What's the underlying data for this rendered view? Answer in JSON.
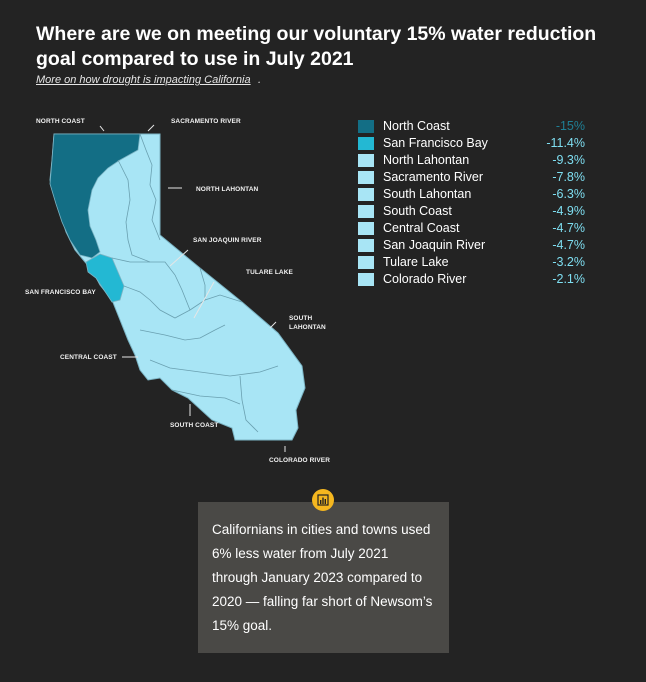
{
  "header": {
    "title": "Where are we on meeting our voluntary 15% water reduction goal compared to use in July 2021",
    "link_text": "More on how drought is impacting California",
    "link_suffix": "."
  },
  "map": {
    "labels": {
      "north_coast": "NORTH COAST",
      "sacramento_river": "SACRAMENTO RIVER",
      "north_lahontan": "NORTH LAHONTAN",
      "san_joaquin_river": "SAN JOAQUIN RIVER",
      "tulare_lake": "TULARE LAKE",
      "san_francisco_bay": "SAN FRANCISCO BAY",
      "south_lahontan_1": "SOUTH",
      "south_lahontan_2": "LAHONTAN",
      "central_coast": "CENTRAL COAST",
      "south_coast": "SOUTH COAST",
      "colorado_river": "COLORADO RIVER"
    },
    "colors": {
      "north_coast": "#136e85",
      "san_francisco_bay": "#23b8d3",
      "others": "#a8e5f5",
      "border": "#7bb4c4"
    }
  },
  "legend": {
    "items": [
      {
        "name": "North Coast",
        "value": "-15%",
        "color": "#136e85"
      },
      {
        "name": "San Francisco Bay",
        "value": "-11.4%",
        "color": "#23b8d3"
      },
      {
        "name": "North Lahontan",
        "value": "-9.3%",
        "color": "#a8e5f5"
      },
      {
        "name": "Sacramento River",
        "value": "-7.8%",
        "color": "#a8e5f5"
      },
      {
        "name": "South Lahontan",
        "value": "-6.3%",
        "color": "#a8e5f5"
      },
      {
        "name": "South Coast",
        "value": "-4.9%",
        "color": "#a8e5f5"
      },
      {
        "name": "Central Coast",
        "value": "-4.7%",
        "color": "#a8e5f5"
      },
      {
        "name": "San Joaquin River",
        "value": "-4.7%",
        "color": "#a8e5f5"
      },
      {
        "name": "Tulare Lake",
        "value": "-3.2%",
        "color": "#a8e5f5"
      },
      {
        "name": "Colorado River",
        "value": "-2.1%",
        "color": "#a8e5f5"
      }
    ]
  },
  "callout": {
    "icon": "bar-chart-icon",
    "icon_color": "#f5b71f",
    "text": "Californians in cities and towns used 6% less water from July 2021 through January 2023 compared to 2020 — falling far short of Newsom’s 15% goal."
  }
}
